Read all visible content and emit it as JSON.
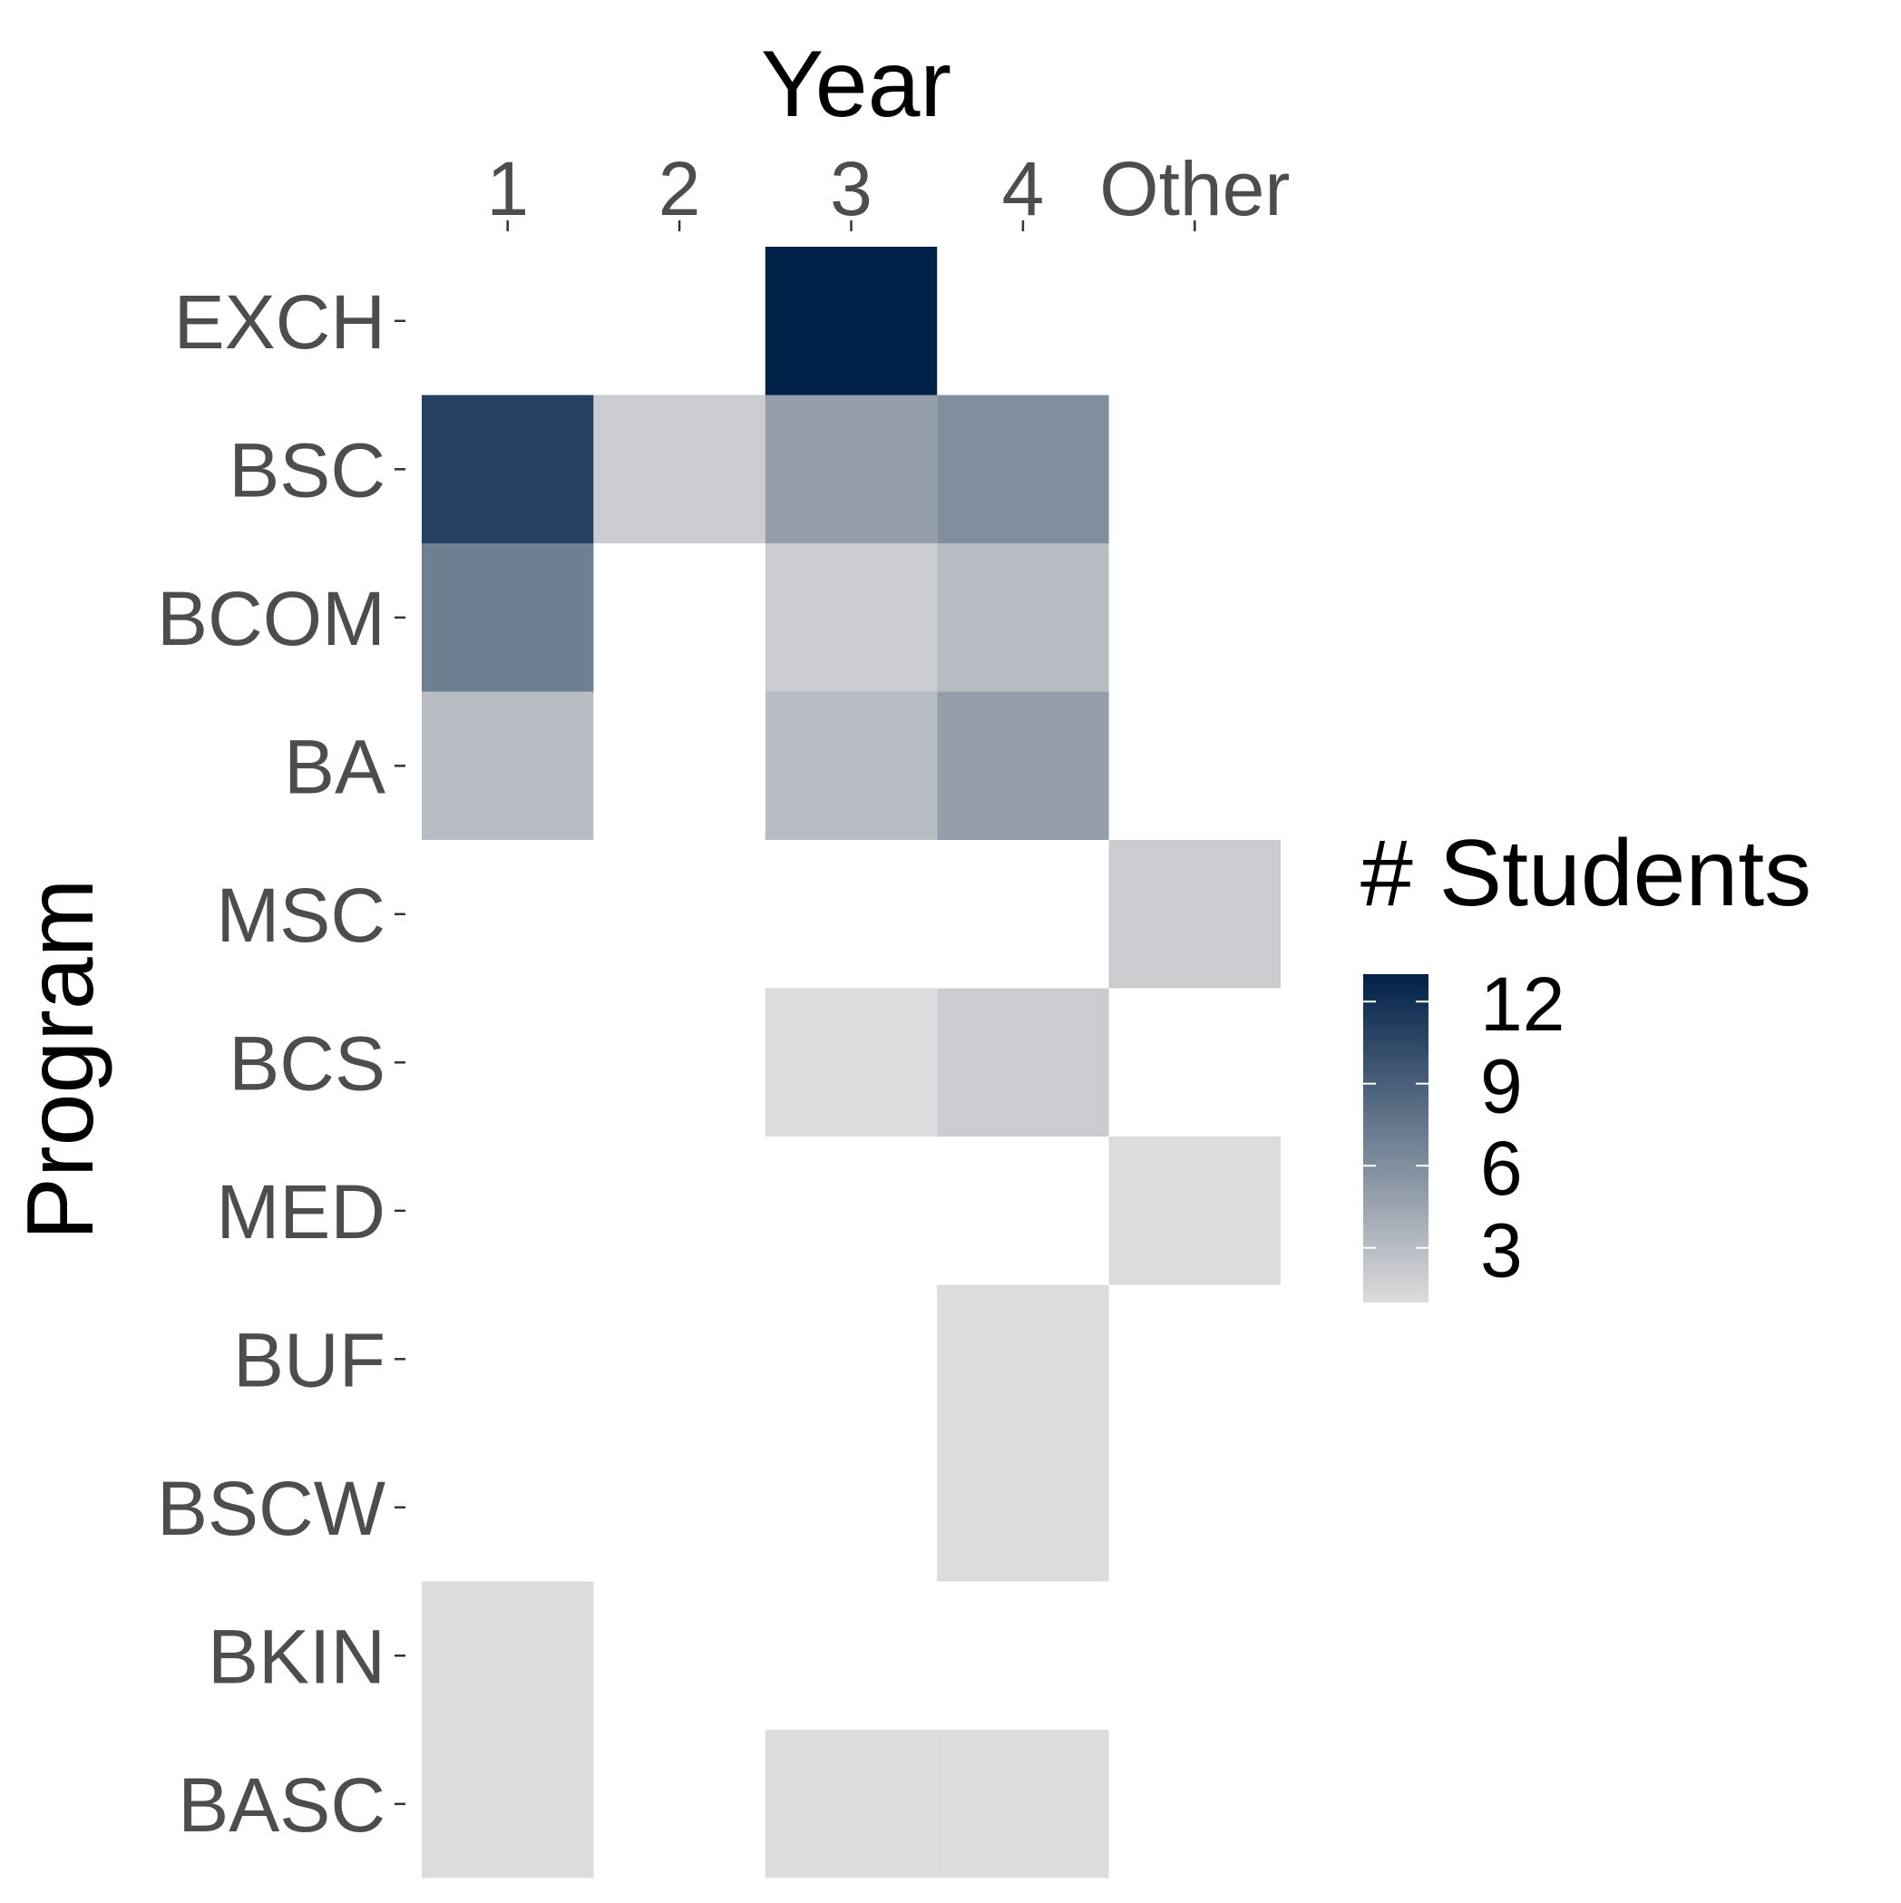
{
  "chart_data": {
    "type": "heatmap",
    "xlabel": "Year",
    "ylabel": "Program",
    "x_categories": [
      "1",
      "2",
      "3",
      "4",
      "Other"
    ],
    "y_categories": [
      "EXCH",
      "BSC",
      "BCOM",
      "BA",
      "MSC",
      "BCS",
      "MED",
      "BUF",
      "BSCW",
      "BKIN",
      "BASC"
    ],
    "values": [
      [
        null,
        null,
        13,
        null,
        null
      ],
      [
        11,
        2,
        5,
        6,
        null
      ],
      [
        7,
        null,
        2,
        3,
        null
      ],
      [
        3,
        null,
        3,
        5,
        null
      ],
      [
        null,
        null,
        null,
        null,
        2
      ],
      [
        null,
        null,
        1,
        2,
        null
      ],
      [
        null,
        null,
        null,
        null,
        1
      ],
      [
        null,
        null,
        null,
        1,
        null
      ],
      [
        null,
        null,
        null,
        1,
        null
      ],
      [
        1,
        null,
        null,
        null,
        null
      ],
      [
        1,
        null,
        1,
        1,
        null
      ]
    ],
    "legend": {
      "title": "# Students",
      "ticks": [
        3,
        6,
        9,
        12
      ],
      "range": [
        1,
        13
      ],
      "low_color": "#dcdcdc",
      "high_color": "#002147",
      "position": "right"
    },
    "grid": false
  }
}
